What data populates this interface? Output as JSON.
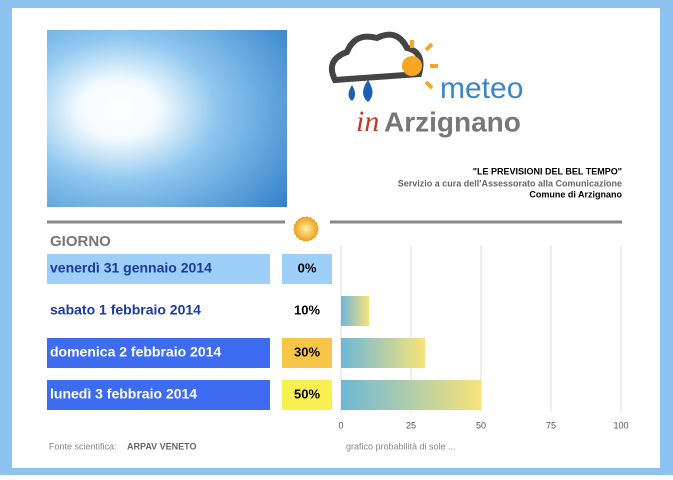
{
  "header": {
    "quote": "\"LE PREVISIONI DEL BEL TEMPO\"",
    "service": "Servizio a cura dell'Assessorato alla Comunicazione",
    "town": "Comune di Arzignano"
  },
  "logo": {
    "meteo": "meteo",
    "in": "in",
    "name": "Arzignano"
  },
  "column_title": "GIORNO",
  "chart_data": {
    "type": "bar",
    "orientation": "horizontal",
    "categories": [
      "venerdì 31 gennaio 2014",
      "sabato 1 febbraio 2014",
      "domenica 2 febbraio 2014",
      "lunedì 3 febbraio 2014"
    ],
    "values": [
      0,
      10,
      30,
      50
    ],
    "value_labels": [
      "0%",
      "10%",
      "30%",
      "50%"
    ],
    "xlim": [
      0,
      100
    ],
    "xticks": [
      0,
      25,
      50,
      75,
      100
    ],
    "grid": true,
    "caption": "grafico probabilità di sole ..."
  },
  "footer": {
    "label": "Fonte scientifica:",
    "source": "ARPAV VENETO"
  }
}
